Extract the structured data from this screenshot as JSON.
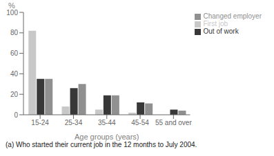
{
  "chart_data": {
    "type": "bar",
    "categories": [
      "15-24",
      "25-34",
      "35-44",
      "45-54",
      "55 and over"
    ],
    "series": [
      {
        "name": "First job",
        "color": "#c8c8c8",
        "values": [
          82,
          8,
          5,
          2,
          0
        ]
      },
      {
        "name": "Out of work",
        "color": "#383838",
        "values": [
          35,
          26,
          19,
          12,
          5
        ]
      },
      {
        "name": "Changed employer",
        "color": "#909090",
        "values": [
          35,
          30,
          19,
          11,
          4
        ]
      }
    ],
    "xlabel": "Age groups (years)",
    "ylabel": "%",
    "ylim": [
      0,
      100
    ],
    "yticks": [
      0,
      20,
      40,
      60,
      80,
      100
    ],
    "grid": false,
    "legend": "upper right",
    "annotations": [
      "(a) Who started their current job in the 12 months to July 2004."
    ]
  }
}
